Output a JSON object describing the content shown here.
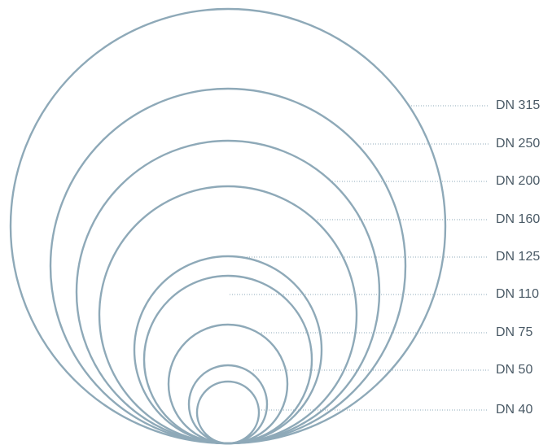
{
  "style": {
    "ring_color": "#8ea9b8",
    "label_color": "#4a5a66",
    "leader_color": "#8ea9b8"
  },
  "diameters": [
    {
      "label": "DN 315"
    },
    {
      "label": "DN 250"
    },
    {
      "label": "DN 200"
    },
    {
      "label": "DN 160"
    },
    {
      "label": "DN 125"
    },
    {
      "label": "DN 110"
    },
    {
      "label": "DN 75"
    },
    {
      "label": "DN 50"
    },
    {
      "label": "DN 40"
    }
  ]
}
